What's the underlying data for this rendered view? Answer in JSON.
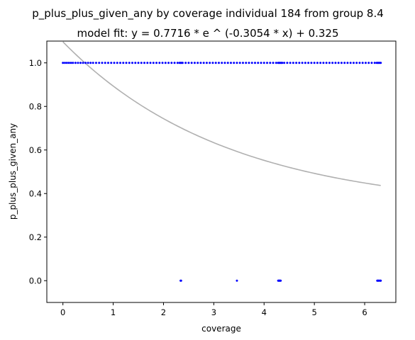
{
  "chart_data": {
    "type": "scatter",
    "title": "p_plus_plus_given_any by coverage individual 184 from group 8.4",
    "subtitle": "model fit: y = 0.7716 * e ^ (-0.3054 * x) + 0.325",
    "xlabel": "coverage",
    "ylabel": "p_plus_plus_given_any",
    "xlim": [
      -0.32,
      6.62
    ],
    "ylim": [
      -0.1,
      1.1
    ],
    "xticks": [
      0,
      1,
      2,
      3,
      4,
      5,
      6
    ],
    "yticks": [
      0.0,
      0.2,
      0.4,
      0.6,
      0.8,
      1.0
    ],
    "grid": false,
    "colors": {
      "points": "#0000ff",
      "fit": "#b0b0b0"
    },
    "fit": {
      "a": 0.7716,
      "b": -0.3054,
      "c": 0.325,
      "x_range": [
        0,
        6.32
      ]
    },
    "series": [
      {
        "points": {
          "y1_x": [
            0.0,
            0.04,
            0.08,
            0.12,
            0.16,
            0.2,
            0.25,
            0.3,
            0.35,
            0.4,
            0.45,
            0.5,
            0.55,
            0.6,
            0.66,
            0.72,
            0.78,
            0.84,
            0.9,
            0.96,
            1.02,
            1.08,
            1.14,
            1.2,
            1.26,
            1.32,
            1.38,
            1.44,
            1.5,
            1.56,
            1.62,
            1.68,
            1.74,
            1.8,
            1.86,
            1.92,
            1.98,
            2.04,
            2.1,
            2.16,
            2.22,
            2.28,
            2.32,
            2.34,
            2.36,
            2.38,
            2.44,
            2.5,
            2.56,
            2.62,
            2.68,
            2.74,
            2.8,
            2.86,
            2.92,
            2.98,
            3.04,
            3.1,
            3.16,
            3.22,
            3.28,
            3.34,
            3.4,
            3.46,
            3.52,
            3.58,
            3.64,
            3.7,
            3.76,
            3.82,
            3.88,
            3.94,
            4.0,
            4.06,
            4.12,
            4.18,
            4.24,
            4.28,
            4.3,
            4.32,
            4.34,
            4.36,
            4.4,
            4.46,
            4.52,
            4.58,
            4.64,
            4.7,
            4.76,
            4.82,
            4.88,
            4.94,
            5.0,
            5.06,
            5.12,
            5.18,
            5.24,
            5.3,
            5.36,
            5.42,
            5.48,
            5.54,
            5.6,
            5.66,
            5.72,
            5.78,
            5.84,
            5.9,
            5.96,
            6.02,
            6.08,
            6.14,
            6.2,
            6.24,
            6.26,
            6.28,
            6.3,
            6.32
          ],
          "y0_x": [
            2.34,
            2.35,
            3.46,
            4.28,
            4.29,
            4.3,
            4.31,
            4.32,
            4.33,
            6.25,
            6.26,
            6.27,
            6.28,
            6.3,
            6.31,
            6.32
          ]
        }
      }
    ]
  }
}
